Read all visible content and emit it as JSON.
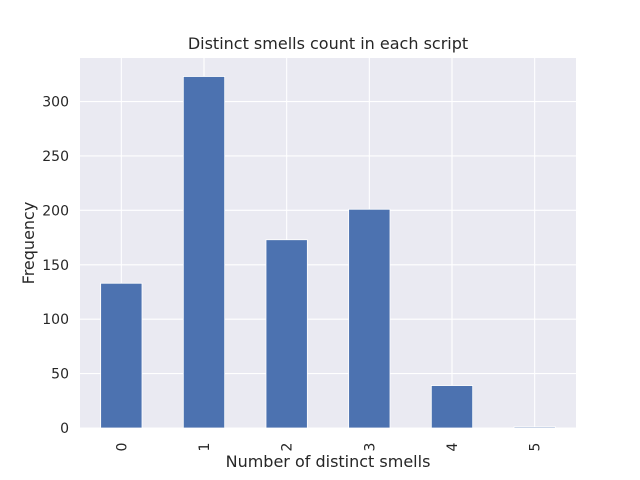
{
  "chart_data": {
    "type": "bar",
    "title": "Distinct smells count in each script",
    "xlabel": "Number of distinct smells",
    "ylabel": "Frequency",
    "categories": [
      "0",
      "1",
      "2",
      "3",
      "4",
      "5"
    ],
    "values": [
      133,
      323,
      173,
      201,
      39,
      1
    ],
    "ylim": [
      0,
      340
    ],
    "yticks": [
      0,
      50,
      100,
      150,
      200,
      250,
      300
    ],
    "grid": true,
    "background_color": "#EAEAF2",
    "bar_color": "#4C72B0",
    "grid_color": "#FFFFFF"
  }
}
